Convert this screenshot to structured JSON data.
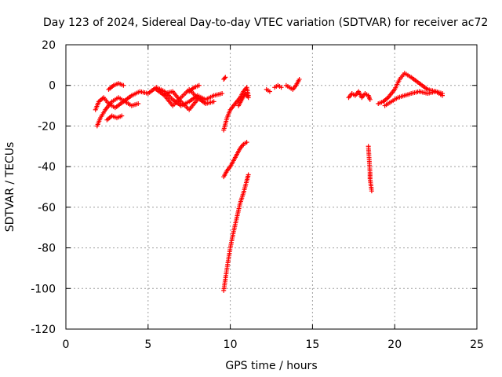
{
  "chart_data": {
    "type": "scatter",
    "title": "Day 123 of 2024, Sidereal Day-to-day VTEC variation (SDTVAR) for receiver ac72",
    "xlabel": "GPS time / hours",
    "ylabel": "SDTVAR / TECUs",
    "xlim": [
      0,
      25
    ],
    "ylim": [
      -120,
      20
    ],
    "xticks": [
      0,
      5,
      10,
      15,
      20,
      25
    ],
    "yticks": [
      20,
      0,
      -20,
      -40,
      -60,
      -80,
      -100,
      -120
    ],
    "xtick_labels": [
      "0",
      "5",
      "10",
      "15",
      "20",
      "25"
    ],
    "ytick_labels": [
      "20",
      "0",
      "-20",
      "-40",
      "-60",
      "-80",
      "-100",
      "-120"
    ],
    "grid": true,
    "marker": "+",
    "color": "#ff0000",
    "segments": [
      {
        "name": "early-arc-a",
        "x": [
          1.8,
          2.0,
          2.3,
          2.6,
          3.0,
          3.5,
          4.0,
          4.5,
          5.0,
          5.5,
          6.0,
          6.5,
          7.0,
          7.5,
          8.0,
          8.5,
          9.0,
          9.5
        ],
        "y": [
          -12,
          -8,
          -6,
          -9,
          -11,
          -8,
          -5,
          -3,
          -4,
          -1,
          -3,
          -7,
          -10,
          -8,
          -5,
          -7,
          -5,
          -4
        ]
      },
      {
        "name": "early-arc-b",
        "x": [
          1.9,
          2.1,
          2.4,
          2.8,
          3.2,
          3.6,
          4.0,
          4.4
        ],
        "y": [
          -20,
          -16,
          -12,
          -8,
          -6,
          -8,
          -10,
          -9
        ]
      },
      {
        "name": "early-arc-c",
        "x": [
          2.6,
          2.9,
          3.2,
          3.5
        ],
        "y": [
          -2,
          0,
          1,
          0
        ]
      },
      {
        "name": "early-arc-d",
        "x": [
          2.5,
          2.8,
          3.1,
          3.4
        ],
        "y": [
          -17,
          -15,
          -16,
          -15
        ]
      },
      {
        "name": "mid-arc-a",
        "x": [
          5.5,
          6.0,
          6.5,
          7.0,
          7.5,
          8.0,
          8.5,
          9.0
        ],
        "y": [
          -2,
          -5,
          -10,
          -6,
          -2,
          -6,
          -9,
          -8
        ]
      },
      {
        "name": "mid-arc-b",
        "x": [
          6.0,
          6.5,
          7.0,
          7.5,
          8.0
        ],
        "y": [
          -4,
          -3,
          -8,
          -12,
          -7
        ]
      },
      {
        "name": "mid-arc-c",
        "x": [
          7.5,
          7.8,
          8.1
        ],
        "y": [
          -3,
          -1,
          0
        ]
      },
      {
        "name": "spike-9-6",
        "x": [
          9.6,
          9.7
        ],
        "y": [
          3,
          4
        ]
      },
      {
        "name": "recovery-arc",
        "x": [
          9.6,
          9.8,
          10.0,
          10.2,
          10.4,
          10.6,
          10.8,
          11.0,
          11.1
        ],
        "y": [
          -22,
          -16,
          -12,
          -10,
          -8,
          -6,
          -3,
          -1,
          -5
        ]
      },
      {
        "name": "recovery-arc-b",
        "x": [
          10.5,
          10.7,
          10.9,
          11.1
        ],
        "y": [
          -10,
          -7,
          -4,
          -6
        ]
      },
      {
        "name": "dip-a",
        "x": [
          9.6,
          9.8,
          10.0,
          10.2,
          10.4,
          10.6,
          10.8,
          11.0
        ],
        "y": [
          -45,
          -42,
          -40,
          -37,
          -34,
          -31,
          -29,
          -28
        ]
      },
      {
        "name": "dip-b",
        "x": [
          9.6,
          9.8,
          10.0,
          10.2,
          10.4,
          10.6,
          10.8,
          11.0,
          11.1
        ],
        "y": [
          -101,
          -90,
          -80,
          -72,
          -65,
          -58,
          -53,
          -47,
          -44
        ]
      },
      {
        "name": "late-morning-a",
        "x": [
          12.2,
          12.4
        ],
        "y": [
          -2,
          -3
        ]
      },
      {
        "name": "late-morning-b",
        "x": [
          12.7,
          12.9,
          13.1
        ],
        "y": [
          -1,
          0,
          -1
        ]
      },
      {
        "name": "late-morning-c",
        "x": [
          13.4,
          13.6,
          13.8,
          14.0,
          14.2
        ],
        "y": [
          0,
          -1,
          -2,
          0,
          3
        ]
      },
      {
        "name": "afternoon-a",
        "x": [
          17.2,
          17.4,
          17.6,
          17.8,
          18.0,
          18.2,
          18.4,
          18.5
        ],
        "y": [
          -6,
          -4,
          -5,
          -3,
          -6,
          -4,
          -5,
          -7
        ]
      },
      {
        "name": "outliers",
        "x": [
          18.4,
          18.5,
          18.5,
          18.6
        ],
        "y": [
          -30,
          -43,
          -46,
          -52
        ]
      },
      {
        "name": "evening-a",
        "x": [
          19.0,
          19.3,
          19.6,
          20.0,
          20.3,
          20.6,
          21.0,
          21.5,
          22.0,
          22.5,
          22.9
        ],
        "y": [
          -9,
          -8,
          -6,
          -2,
          3,
          6,
          4,
          1,
          -2,
          -3,
          -5
        ]
      },
      {
        "name": "evening-b",
        "x": [
          19.4,
          19.8,
          20.2,
          20.6,
          21.0,
          21.5,
          22.0,
          22.5,
          22.9
        ],
        "y": [
          -10,
          -8,
          -6,
          -5,
          -4,
          -3,
          -4,
          -3,
          -4
        ]
      }
    ]
  }
}
